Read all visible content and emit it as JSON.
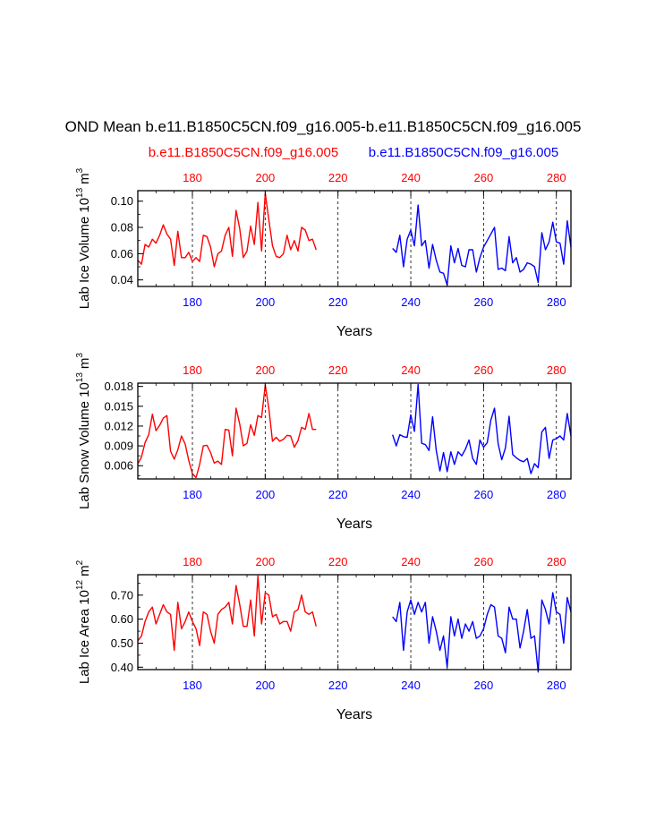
{
  "title": "OND Mean b.e11.B1850C5CN.f09_g16.005-b.e11.B1850C5CN.f09_g16.005",
  "legend": {
    "left_label": "b.e11.B1850C5CN.f09_g16.005",
    "right_label": "b.e11.B1850C5CN.f09_g16.005",
    "left_color": "#ff0000",
    "right_color": "#0000ff"
  },
  "chart_data": [
    {
      "type": "line",
      "ylabel_main": "Lab Ice Volume 10",
      "ylabel_exp": "13",
      "ylabel_unit": "m",
      "ylabel_unit_exp": "3",
      "xlabel": "Years",
      "xlim": [
        165,
        284
      ],
      "ylim": [
        0.035,
        0.108
      ],
      "yticks": [
        0.04,
        0.06,
        0.08,
        0.1
      ],
      "ytick_labels": [
        "0.04",
        "0.06",
        "0.08",
        "0.10"
      ],
      "xticks": [
        180,
        200,
        220,
        240,
        260,
        280
      ],
      "xtick_labels": [
        "180",
        "200",
        "220",
        "240",
        "260",
        "280"
      ],
      "top_tick_labels": [
        "180",
        "200",
        "220",
        "240",
        "260",
        "280"
      ],
      "series": [
        {
          "name": "b.e11.B1850C5CN.f09_g16.005",
          "color": "#ff0000",
          "x": [
            165,
            166,
            167,
            168,
            169,
            170,
            171,
            172,
            173,
            174,
            175,
            176,
            177,
            178,
            179,
            180,
            181,
            182,
            183,
            184,
            185,
            186,
            187,
            188,
            189,
            190,
            191,
            192,
            193,
            194,
            195,
            196,
            197,
            198,
            199,
            200,
            201,
            202,
            203,
            204,
            205,
            206,
            207,
            208,
            209,
            210,
            211,
            212,
            213,
            214
          ],
          "values": [
            0.055,
            0.052,
            0.067,
            0.065,
            0.071,
            0.068,
            0.074,
            0.082,
            0.075,
            0.071,
            0.051,
            0.077,
            0.057,
            0.057,
            0.061,
            0.054,
            0.057,
            0.054,
            0.074,
            0.073,
            0.065,
            0.05,
            0.06,
            0.062,
            0.074,
            0.08,
            0.058,
            0.093,
            0.079,
            0.057,
            0.062,
            0.081,
            0.067,
            0.099,
            0.062,
            0.106,
            0.086,
            0.066,
            0.058,
            0.057,
            0.06,
            0.074,
            0.063,
            0.07,
            0.062,
            0.08,
            0.078,
            0.07,
            0.071,
            0.063
          ]
        },
        {
          "name": "b.e11.B1850C5CN.f09_g16.005",
          "color": "#0000ff",
          "x": [
            235,
            236,
            237,
            238,
            239,
            240,
            241,
            242,
            243,
            244,
            245,
            246,
            247,
            248,
            249,
            250,
            251,
            252,
            253,
            254,
            255,
            256,
            257,
            258,
            259,
            260,
            261,
            262,
            263,
            264,
            265,
            266,
            267,
            268,
            269,
            270,
            271,
            272,
            273,
            274,
            275,
            276,
            277,
            278,
            279,
            280,
            281,
            282,
            283,
            284
          ],
          "values": [
            0.064,
            0.061,
            0.074,
            0.05,
            0.071,
            0.078,
            0.066,
            0.097,
            0.066,
            0.07,
            0.049,
            0.067,
            0.055,
            0.046,
            0.045,
            0.036,
            0.066,
            0.053,
            0.064,
            0.051,
            0.05,
            0.063,
            0.063,
            0.046,
            0.057,
            0.065,
            0.07,
            0.075,
            0.08,
            0.048,
            0.049,
            0.047,
            0.073,
            0.053,
            0.057,
            0.046,
            0.048,
            0.053,
            0.052,
            0.05,
            0.038,
            0.076,
            0.063,
            0.069,
            0.084,
            0.069,
            0.068,
            0.052,
            0.085,
            0.065
          ]
        }
      ]
    },
    {
      "type": "line",
      "ylabel_main": "Lab Snow Volume 10",
      "ylabel_exp": "13",
      "ylabel_unit": "m",
      "ylabel_unit_exp": "3",
      "xlabel": "Years",
      "xlim": [
        165,
        284
      ],
      "ylim": [
        0.004,
        0.0185
      ],
      "yticks": [
        0.006,
        0.009,
        0.012,
        0.015,
        0.018
      ],
      "ytick_labels": [
        "0.006",
        "0.009",
        "0.012",
        "0.015",
        "0.018"
      ],
      "xticks": [
        180,
        200,
        220,
        240,
        260,
        280
      ],
      "xtick_labels": [
        "180",
        "200",
        "220",
        "240",
        "260",
        "280"
      ],
      "top_tick_labels": [
        "180",
        "200",
        "220",
        "240",
        "260",
        "280"
      ],
      "series": [
        {
          "name": "b.e11.B1850C5CN.f09_g16.005",
          "color": "#ff0000",
          "x": [
            165,
            166,
            167,
            168,
            169,
            170,
            171,
            172,
            173,
            174,
            175,
            176,
            177,
            178,
            179,
            180,
            181,
            182,
            183,
            184,
            185,
            186,
            187,
            188,
            189,
            190,
            191,
            192,
            193,
            194,
            195,
            196,
            197,
            198,
            199,
            200,
            201,
            202,
            203,
            204,
            205,
            206,
            207,
            208,
            209,
            210,
            211,
            212,
            213,
            214
          ],
          "values": [
            0.0063,
            0.0073,
            0.0095,
            0.0107,
            0.0138,
            0.0113,
            0.0121,
            0.0132,
            0.0136,
            0.0082,
            0.007,
            0.0084,
            0.0105,
            0.0093,
            0.0068,
            0.0048,
            0.0042,
            0.0062,
            0.009,
            0.0091,
            0.008,
            0.0064,
            0.0067,
            0.0062,
            0.0115,
            0.0114,
            0.0075,
            0.0147,
            0.0123,
            0.009,
            0.0094,
            0.0122,
            0.0106,
            0.0136,
            0.0133,
            0.0182,
            0.0147,
            0.0097,
            0.0103,
            0.0097,
            0.01,
            0.0106,
            0.0105,
            0.0088,
            0.0098,
            0.0118,
            0.0115,
            0.0139,
            0.0115,
            0.0115
          ]
        },
        {
          "name": "b.e11.B1850C5CN.f09_g16.005",
          "color": "#0000ff",
          "x": [
            235,
            236,
            237,
            238,
            239,
            240,
            241,
            242,
            243,
            244,
            245,
            246,
            247,
            248,
            249,
            250,
            251,
            252,
            253,
            254,
            255,
            256,
            257,
            258,
            259,
            260,
            261,
            262,
            263,
            264,
            265,
            266,
            267,
            268,
            269,
            270,
            271,
            272,
            273,
            274,
            275,
            276,
            277,
            278,
            279,
            280,
            281,
            282,
            283,
            284
          ],
          "values": [
            0.0107,
            0.009,
            0.0107,
            0.0104,
            0.0103,
            0.0137,
            0.0112,
            0.0183,
            0.0094,
            0.0092,
            0.0083,
            0.0134,
            0.0083,
            0.0052,
            0.008,
            0.0051,
            0.0081,
            0.0062,
            0.0081,
            0.0075,
            0.0085,
            0.0099,
            0.0071,
            0.0062,
            0.0099,
            0.0088,
            0.0095,
            0.0129,
            0.0147,
            0.0093,
            0.0069,
            0.0087,
            0.0135,
            0.0077,
            0.0072,
            0.0068,
            0.0066,
            0.0071,
            0.0048,
            0.0063,
            0.0057,
            0.0111,
            0.0118,
            0.0071,
            0.0099,
            0.0101,
            0.0105,
            0.0099,
            0.0139,
            0.0105
          ]
        }
      ]
    },
    {
      "type": "line",
      "ylabel_main": "Lab Ice Area 10",
      "ylabel_exp": "12",
      "ylabel_unit": "m",
      "ylabel_unit_exp": "2",
      "xlabel": "Years",
      "xlim": [
        165,
        284
      ],
      "ylim": [
        0.39,
        0.785
      ],
      "yticks": [
        0.4,
        0.5,
        0.6,
        0.7
      ],
      "ytick_labels": [
        "0.40",
        "0.50",
        "0.60",
        "0.70"
      ],
      "xticks": [
        180,
        200,
        220,
        240,
        260,
        280
      ],
      "xtick_labels": [
        "180",
        "200",
        "220",
        "240",
        "260",
        "280"
      ],
      "top_tick_labels": [
        "180",
        "200",
        "220",
        "240",
        "260",
        "280"
      ],
      "series": [
        {
          "name": "b.e11.B1850C5CN.f09_g16.005",
          "color": "#ff0000",
          "x": [
            165,
            166,
            167,
            168,
            169,
            170,
            171,
            172,
            173,
            174,
            175,
            176,
            177,
            178,
            179,
            180,
            181,
            182,
            183,
            184,
            185,
            186,
            187,
            188,
            189,
            190,
            191,
            192,
            193,
            194,
            195,
            196,
            197,
            198,
            199,
            200,
            201,
            202,
            203,
            204,
            205,
            206,
            207,
            208,
            209,
            210,
            211,
            212,
            213,
            214
          ],
          "values": [
            0.51,
            0.53,
            0.59,
            0.63,
            0.65,
            0.58,
            0.62,
            0.66,
            0.63,
            0.62,
            0.47,
            0.67,
            0.56,
            0.59,
            0.63,
            0.59,
            0.56,
            0.49,
            0.63,
            0.62,
            0.55,
            0.5,
            0.62,
            0.64,
            0.65,
            0.67,
            0.58,
            0.74,
            0.66,
            0.57,
            0.57,
            0.68,
            0.53,
            0.78,
            0.58,
            0.71,
            0.7,
            0.61,
            0.62,
            0.58,
            0.59,
            0.59,
            0.55,
            0.63,
            0.64,
            0.7,
            0.63,
            0.62,
            0.63,
            0.57
          ]
        },
        {
          "name": "b.e11.B1850C5CN.f09_g16.005",
          "color": "#0000ff",
          "x": [
            235,
            236,
            237,
            238,
            239,
            240,
            241,
            242,
            243,
            244,
            245,
            246,
            247,
            248,
            249,
            250,
            251,
            252,
            253,
            254,
            255,
            256,
            257,
            258,
            259,
            260,
            261,
            262,
            263,
            264,
            265,
            266,
            267,
            268,
            269,
            270,
            271,
            272,
            273,
            274,
            275,
            276,
            277,
            278,
            279,
            280,
            281,
            282,
            283,
            284
          ],
          "values": [
            0.61,
            0.59,
            0.67,
            0.47,
            0.63,
            0.68,
            0.62,
            0.67,
            0.63,
            0.67,
            0.5,
            0.61,
            0.55,
            0.47,
            0.53,
            0.4,
            0.61,
            0.53,
            0.6,
            0.52,
            0.58,
            0.55,
            0.59,
            0.52,
            0.53,
            0.56,
            0.62,
            0.66,
            0.65,
            0.53,
            0.52,
            0.46,
            0.65,
            0.6,
            0.6,
            0.48,
            0.55,
            0.64,
            0.52,
            0.53,
            0.38,
            0.68,
            0.64,
            0.58,
            0.71,
            0.63,
            0.62,
            0.5,
            0.69,
            0.63
          ]
        }
      ]
    }
  ]
}
